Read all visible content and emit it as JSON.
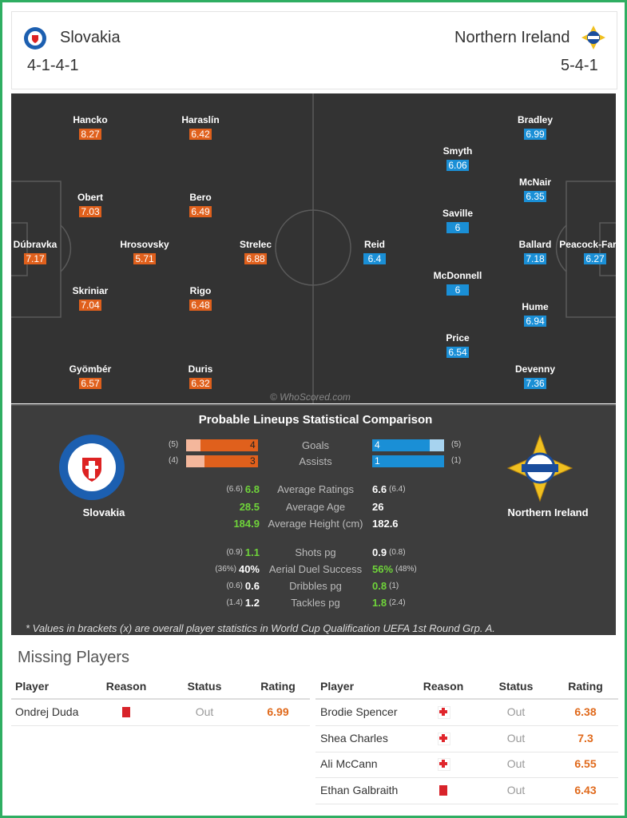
{
  "header": {
    "home": {
      "name": "Slovakia",
      "formation": "4-1-4-1"
    },
    "away": {
      "name": "Northern Ireland",
      "formation": "5-4-1"
    }
  },
  "pitch": {
    "home_color": "#e0601c",
    "away_color": "#1a8fd6",
    "watermark": "© WhoScored.com",
    "home_players": [
      {
        "name": "Hancko",
        "rating": 8.27
      },
      {
        "name": "Haraslín",
        "rating": 6.42
      },
      {
        "name": "Obert",
        "rating": 7.03
      },
      {
        "name": "Bero",
        "rating": 6.49
      },
      {
        "name": "Dúbravka",
        "rating": 7.17
      },
      {
        "name": "Hrosovsky",
        "rating": 5.71
      },
      {
        "name": "Strelec",
        "rating": 6.88
      },
      {
        "name": "Skriniar",
        "rating": 7.04
      },
      {
        "name": "Rigo",
        "rating": 6.48
      },
      {
        "name": "Gyömbér",
        "rating": 6.57
      },
      {
        "name": "Duris",
        "rating": 6.32
      }
    ],
    "away_players": [
      {
        "name": "Bradley",
        "rating": 6.99
      },
      {
        "name": "Smyth",
        "rating": 6.06
      },
      {
        "name": "McNair",
        "rating": 6.35
      },
      {
        "name": "Saville",
        "rating": 6
      },
      {
        "name": "Ballard",
        "rating": 7.18
      },
      {
        "name": "Peacock-Farrell",
        "rating": 6.27
      },
      {
        "name": "Reid",
        "rating": 6.4
      },
      {
        "name": "McDonnell",
        "rating": 6
      },
      {
        "name": "Hume",
        "rating": 6.94
      },
      {
        "name": "Price",
        "rating": 6.54
      },
      {
        "name": "Devenny",
        "rating": 7.36
      }
    ]
  },
  "comparison": {
    "title": "Probable Lineups Statistical Comparison",
    "home_light_color": "#f4b79c",
    "away_light_color": "#a7d3ef",
    "better_color": "#6fd43a",
    "bar_rows": [
      {
        "label": "Goals",
        "home": 4,
        "home_overall": {
          "value": 5,
          "label": "(5)"
        },
        "away": 4,
        "away_overall": {
          "value": 5,
          "label": "(5)"
        }
      },
      {
        "label": "Assists",
        "home": 3,
        "home_overall": {
          "value": 4,
          "label": "(4)"
        },
        "away": 1,
        "away_overall": {
          "value": 1,
          "label": "(1)"
        }
      }
    ],
    "rows": [
      {
        "label": "Average Ratings",
        "home_overall": "(6.6)",
        "home": 6.8,
        "away": 6.6,
        "away_overall": "(6.4)",
        "better": "home"
      },
      {
        "label": "Average Age",
        "home": 28.5,
        "away": 26,
        "better": "home"
      },
      {
        "label": "Average Height (cm)",
        "home": 184.9,
        "away": 182.6,
        "better": "home"
      },
      {
        "label": "Shots pg",
        "home_overall": "(0.9)",
        "home": 1.1,
        "away": 0.9,
        "away_overall": "(0.8)",
        "better": "home"
      },
      {
        "label": "Aerial Duel Success",
        "home_overall": "(36%)",
        "home": "40%",
        "away": "56%",
        "away_overall": "(48%)",
        "better": "away"
      },
      {
        "label": "Dribbles pg",
        "home_overall": "(0.6)",
        "home": 0.6,
        "away": 0.8,
        "away_overall": "(1)",
        "better": "away"
      },
      {
        "label": "Tackles pg",
        "home_overall": "(1.4)",
        "home": 1.2,
        "away": 1.8,
        "away_overall": "(2.4)",
        "better": "away"
      }
    ],
    "footnote": "* Values in brackets (x) are overall player statistics in World Cup Qualification UEFA 1st Round Grp. A."
  },
  "missing": {
    "title": "Missing Players",
    "columns": [
      "Player",
      "Reason",
      "Status",
      "Rating"
    ],
    "home_rows": [
      {
        "player": "Ondrej Duda",
        "status": "Out",
        "rating": 6.99
      }
    ],
    "away_rows": [
      {
        "player": "Brodie Spencer",
        "status": "Out",
        "rating": 6.38
      },
      {
        "player": "Shea Charles",
        "status": "Out",
        "rating": 7.3
      },
      {
        "player": "Ali McCann",
        "status": "Out",
        "rating": 6.55
      },
      {
        "player": "Ethan Galbraith",
        "status": "Out",
        "rating": 6.43
      }
    ]
  }
}
